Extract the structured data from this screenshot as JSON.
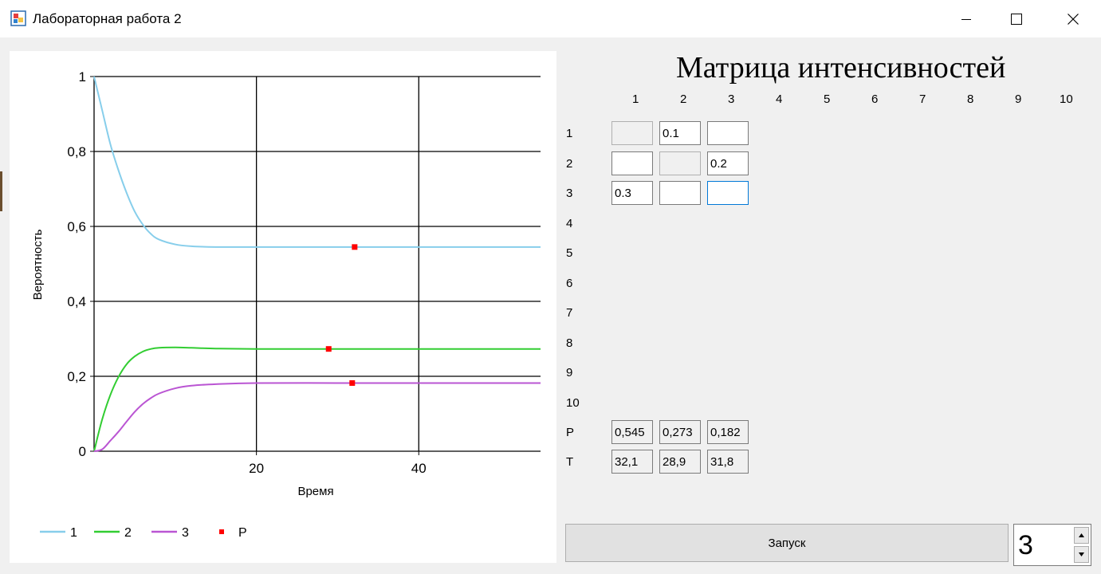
{
  "window": {
    "title": "Лабораторная работа 2"
  },
  "chart_data": {
    "type": "line",
    "ylabel": "Вероятность",
    "xlabel": "Время",
    "xlim": [
      0,
      55
    ],
    "ylim": [
      0,
      1
    ],
    "x_ticks": [
      "20",
      "40"
    ],
    "y_ticks": [
      "0",
      "0,2",
      "0,4",
      "0,6",
      "0,8",
      "1"
    ],
    "grid": true,
    "legend_position": "bottom",
    "series": [
      {
        "name": "1",
        "color": "#87ceeb",
        "x": [
          0,
          1,
          2,
          3,
          4,
          5,
          6,
          7,
          8,
          10,
          12,
          15,
          20,
          30,
          40,
          55
        ],
        "values": [
          1.0,
          0.91,
          0.82,
          0.75,
          0.69,
          0.64,
          0.605,
          0.58,
          0.565,
          0.552,
          0.547,
          0.545,
          0.545,
          0.545,
          0.545,
          0.545
        ]
      },
      {
        "name": "2",
        "color": "#32cd32",
        "x": [
          0,
          1,
          2,
          3,
          4,
          5,
          6,
          7,
          8,
          10,
          12,
          15,
          20,
          30,
          40,
          55
        ],
        "values": [
          0.0,
          0.085,
          0.15,
          0.198,
          0.232,
          0.253,
          0.266,
          0.273,
          0.276,
          0.277,
          0.276,
          0.274,
          0.273,
          0.273,
          0.273,
          0.273
        ]
      },
      {
        "name": "3",
        "color": "#ba55d3",
        "x": [
          0,
          1,
          2,
          3,
          4,
          5,
          6,
          7,
          8,
          10,
          12,
          15,
          20,
          30,
          40,
          55
        ],
        "values": [
          0.0,
          0.005,
          0.028,
          0.052,
          0.079,
          0.105,
          0.126,
          0.142,
          0.154,
          0.168,
          0.175,
          0.179,
          0.182,
          0.182,
          0.182,
          0.182
        ]
      }
    ],
    "points": {
      "name": "P",
      "color": "#ff0000",
      "x": [
        32.1,
        28.9,
        31.8
      ],
      "values": [
        0.545,
        0.273,
        0.182
      ]
    }
  },
  "matrix": {
    "title": "Матрица интенсивностей",
    "col_headers": [
      "1",
      "2",
      "3",
      "4",
      "5",
      "6",
      "7",
      "8",
      "9",
      "10"
    ],
    "row_headers": [
      "1",
      "2",
      "3",
      "4",
      "5",
      "6",
      "7",
      "8",
      "9",
      "10"
    ],
    "cells": [
      [
        "",
        "0.1",
        ""
      ],
      [
        "",
        "",
        "0.2"
      ],
      [
        "0.3",
        "",
        ""
      ]
    ],
    "p_label": "P",
    "p_values": [
      "0,545",
      "0,273",
      "0,182"
    ],
    "t_label": "T",
    "t_values": [
      "32,1",
      "28,9",
      "31,8"
    ]
  },
  "controls": {
    "run_label": "Запуск",
    "state_count": "3"
  }
}
